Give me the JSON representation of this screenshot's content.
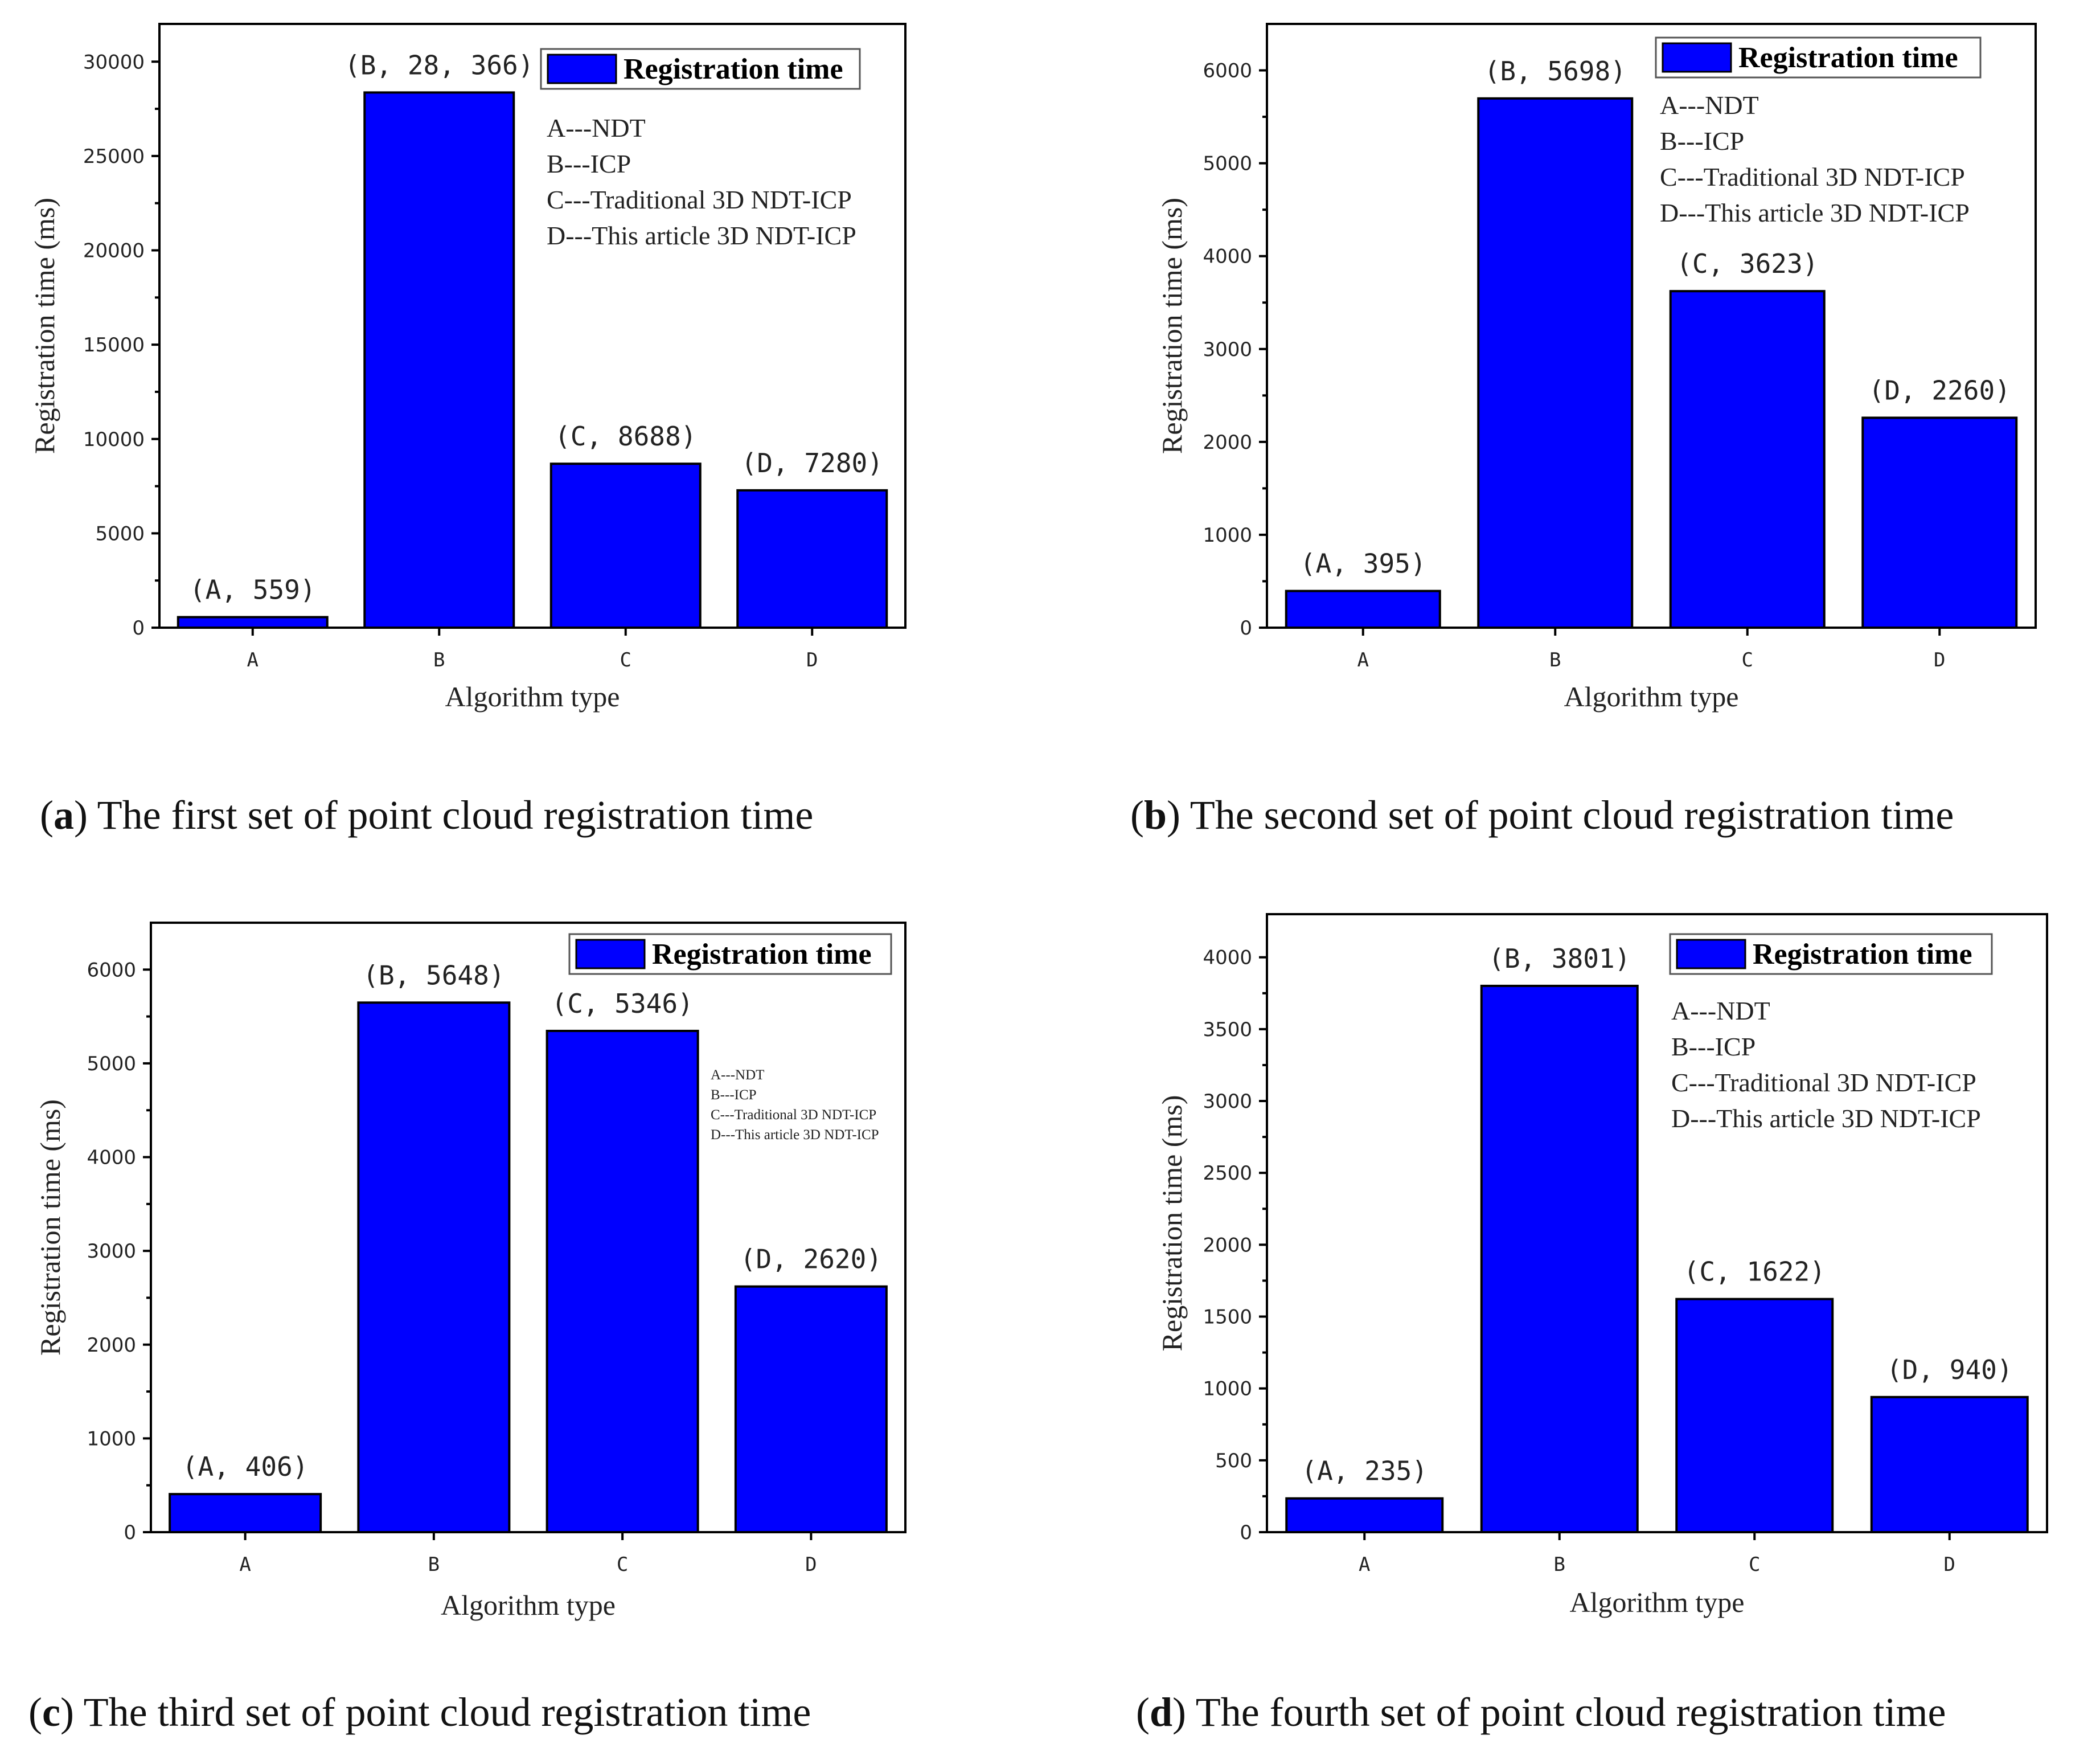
{
  "figure": {
    "panels": [
      {
        "id": "a",
        "caption_letter": "a",
        "caption_text": " The first set of point cloud registration time",
        "legend_title": "Registration time",
        "notes": [
          "A---NDT",
          "B---ICP",
          "C---Traditional 3D NDT-ICP",
          "D---This article 3D NDT-ICP"
        ]
      },
      {
        "id": "b",
        "caption_letter": "b",
        "caption_text": " The second set of point cloud registration time",
        "legend_title": "Registration time",
        "notes": [
          "A---NDT",
          "B---ICP",
          "C---Traditional 3D NDT-ICP",
          "D---This article 3D NDT-ICP"
        ]
      },
      {
        "id": "c",
        "caption_letter": "c",
        "caption_text": " The third set of point cloud registration time",
        "legend_title": "Registration time",
        "notes": [
          "A---NDT",
          "B---ICP",
          "C---Traditional 3D NDT-ICP",
          "D---This article 3D NDT-ICP"
        ]
      },
      {
        "id": "d",
        "caption_letter": "d",
        "caption_text": " The fourth set of point cloud registration time",
        "legend_title": "Registration time",
        "notes": [
          "A---NDT",
          "B---ICP",
          "C---Traditional 3D NDT-ICP",
          "D---This article 3D NDT-ICP"
        ]
      }
    ]
  },
  "chart_data": [
    {
      "type": "bar",
      "categories": [
        "A",
        "B",
        "C",
        "D"
      ],
      "values": [
        559,
        28366,
        8688,
        7280
      ],
      "data_labels": [
        "(A, 559)",
        "(B, 28, 366)",
        "(C, 8688)",
        "(D, 7280)"
      ],
      "xlabel": "Algorithm type",
      "ylabel": "Registration time (ms)",
      "ylim": [
        0,
        32000
      ],
      "yticks": [
        0,
        5000,
        10000,
        15000,
        20000,
        25000,
        30000
      ],
      "legend": "top-right",
      "bar_color": "#0000ff"
    },
    {
      "type": "bar",
      "categories": [
        "A",
        "B",
        "C",
        "D"
      ],
      "values": [
        395,
        5698,
        3623,
        2260
      ],
      "data_labels": [
        "(A, 395)",
        "(B, 5698)",
        "(C, 3623)",
        "(D, 2260)"
      ],
      "xlabel": "Algorithm type",
      "ylabel": "Registration time (ms)",
      "ylim": [
        0,
        6500
      ],
      "yticks": [
        0,
        1000,
        2000,
        3000,
        4000,
        5000,
        6000
      ],
      "legend": "top-right",
      "bar_color": "#0000ff"
    },
    {
      "type": "bar",
      "categories": [
        "A",
        "B",
        "C",
        "D"
      ],
      "values": [
        406,
        5648,
        5346,
        2620
      ],
      "data_labels": [
        "(A, 406)",
        "(B, 5648)",
        "(C, 5346)",
        "(D, 2620)"
      ],
      "xlabel": "Algorithm type",
      "ylabel": "Registration time (ms)",
      "ylim": [
        0,
        6500
      ],
      "yticks": [
        0,
        1000,
        2000,
        3000,
        4000,
        5000,
        6000
      ],
      "legend": "top-right",
      "bar_color": "#0000ff"
    },
    {
      "type": "bar",
      "categories": [
        "A",
        "B",
        "C",
        "D"
      ],
      "values": [
        235,
        3801,
        1622,
        940
      ],
      "data_labels": [
        "(A, 235)",
        "(B, 3801)",
        "(C, 1622)",
        "(D, 940)"
      ],
      "xlabel": "Algorithm type",
      "ylabel": "Registration time (ms)",
      "ylim": [
        0,
        4300
      ],
      "yticks": [
        0,
        500,
        1000,
        1500,
        2000,
        2500,
        3000,
        3500,
        4000
      ],
      "legend": "top-right",
      "bar_color": "#0000ff"
    }
  ]
}
